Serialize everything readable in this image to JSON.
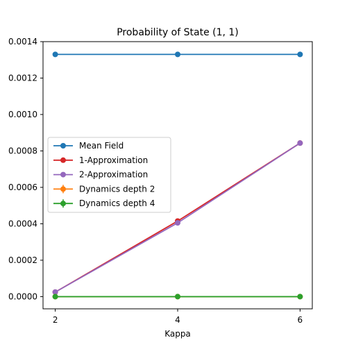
{
  "chart_data": {
    "type": "line",
    "title": "Probability of State (1, 1)",
    "xlabel": "Kappa",
    "ylabel": "",
    "x": [
      2,
      4,
      6
    ],
    "xlim": [
      1.8,
      6.2
    ],
    "ylim": [
      -6.7e-05,
      0.0014
    ],
    "xticks": [
      "2",
      "4",
      "6"
    ],
    "yticks": [
      "0.0000",
      "0.0002",
      "0.0004",
      "0.0006",
      "0.0008",
      "0.0010",
      "0.0012",
      "0.0014"
    ],
    "grid": false,
    "legend_position": "center-left",
    "series": [
      {
        "name": "Mean Field",
        "color": "#1f77b4",
        "values": [
          0.00133,
          0.00133,
          0.00133
        ],
        "marker": "circle",
        "errorbar": false
      },
      {
        "name": "1-Approximation",
        "color": "#d62728",
        "values": [
          2.5e-05,
          0.000415,
          0.000843
        ],
        "marker": "circle",
        "errorbar": false
      },
      {
        "name": "2-Approximation",
        "color": "#9467bd",
        "values": [
          2.5e-05,
          0.000405,
          0.000843
        ],
        "marker": "circle",
        "errorbar": false
      },
      {
        "name": "Dynamics depth 2",
        "color": "#ff7f0e",
        "values": [
          0.0,
          0.0,
          0.0
        ],
        "marker": "circle",
        "errorbar": true
      },
      {
        "name": "Dynamics depth 4",
        "color": "#2ca02c",
        "values": [
          0.0,
          0.0,
          0.0
        ],
        "marker": "circle",
        "errorbar": true
      }
    ]
  }
}
